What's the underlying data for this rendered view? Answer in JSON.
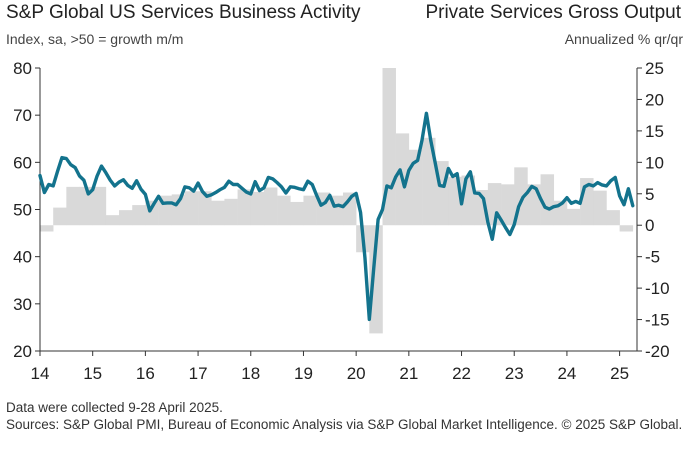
{
  "header": {
    "title_left": "S&P Global US Services Business Activity",
    "title_right": "Private Services Gross Output",
    "subtitle_left": "Index, sa, >50 = growth m/m",
    "subtitle_right": "Annualized % qr/qr"
  },
  "footer": {
    "note": "Data were collected 9-28 April 2025.",
    "sources": "Sources: S&P Global PMI, Bureau of Economic Analysis via S&P Global Market Intelligence. © 2025 S&P Global."
  },
  "chart_data": {
    "type": "bar+line",
    "left_axis": {
      "min": 20,
      "max": 80,
      "ticks": [
        20,
        30,
        40,
        50,
        60,
        70,
        80
      ]
    },
    "right_axis": {
      "min": -20,
      "max": 25,
      "ticks": [
        -20,
        -15,
        -10,
        -5,
        0,
        5,
        10,
        15,
        20,
        25
      ]
    },
    "x_axis": {
      "min": 2014.0,
      "max": 2025.33,
      "tick_labels": [
        "14",
        "15",
        "16",
        "17",
        "18",
        "19",
        "20",
        "21",
        "22",
        "23",
        "24",
        "25"
      ]
    },
    "colors": {
      "line": "#13738d",
      "bars": "#d9d9d9",
      "axis": "#333333"
    },
    "bar_series": {
      "axis": "right",
      "quarters": [
        "2014Q1",
        "2014Q2",
        "2014Q3",
        "2014Q4",
        "2015Q1",
        "2015Q2",
        "2015Q3",
        "2015Q4",
        "2016Q1",
        "2016Q2",
        "2016Q3",
        "2016Q4",
        "2017Q1",
        "2017Q2",
        "2017Q3",
        "2017Q4",
        "2018Q1",
        "2018Q2",
        "2018Q3",
        "2018Q4",
        "2019Q1",
        "2019Q2",
        "2019Q3",
        "2019Q4",
        "2020Q1",
        "2020Q2",
        "2020Q3",
        "2020Q4",
        "2021Q1",
        "2021Q2",
        "2021Q3",
        "2021Q4",
        "2022Q1",
        "2022Q2",
        "2022Q3",
        "2022Q4",
        "2023Q1",
        "2023Q2",
        "2023Q3",
        "2023Q4",
        "2024Q1",
        "2024Q2",
        "2024Q3",
        "2024Q4",
        "2025Q1"
      ],
      "values": [
        -1,
        2.8,
        6.1,
        6.1,
        6.1,
        1.6,
        2.4,
        3.2,
        3.9,
        4.7,
        4.9,
        5.4,
        5.4,
        3.9,
        4.2,
        5.7,
        5.3,
        6.0,
        4.7,
        3.7,
        4.7,
        5.2,
        4.7,
        5.2,
        -4.3,
        -17.2,
        25.0,
        14.6,
        12.0,
        13.9,
        10.2,
        7.7,
        7.9,
        5.6,
        6.7,
        6.5,
        9.2,
        6.5,
        8.1,
        3.9,
        2.6,
        7.5,
        5.5,
        2.4,
        -1.0
      ]
    },
    "line_series": {
      "axis": "left",
      "months": [
        "2014-01",
        "2014-02",
        "2014-03",
        "2014-04",
        "2014-05",
        "2014-06",
        "2014-07",
        "2014-08",
        "2014-09",
        "2014-10",
        "2014-11",
        "2014-12",
        "2015-01",
        "2015-02",
        "2015-03",
        "2015-04",
        "2015-05",
        "2015-06",
        "2015-07",
        "2015-08",
        "2015-09",
        "2015-10",
        "2015-11",
        "2015-12",
        "2016-01",
        "2016-02",
        "2016-03",
        "2016-04",
        "2016-05",
        "2016-06",
        "2016-07",
        "2016-08",
        "2016-09",
        "2016-10",
        "2016-11",
        "2016-12",
        "2017-01",
        "2017-02",
        "2017-03",
        "2017-04",
        "2017-05",
        "2017-06",
        "2017-07",
        "2017-08",
        "2017-09",
        "2017-10",
        "2017-11",
        "2017-12",
        "2018-01",
        "2018-02",
        "2018-03",
        "2018-04",
        "2018-05",
        "2018-06",
        "2018-07",
        "2018-08",
        "2018-09",
        "2018-10",
        "2018-11",
        "2018-12",
        "2019-01",
        "2019-02",
        "2019-03",
        "2019-04",
        "2019-05",
        "2019-06",
        "2019-07",
        "2019-08",
        "2019-09",
        "2019-10",
        "2019-11",
        "2019-12",
        "2020-01",
        "2020-02",
        "2020-03",
        "2020-04",
        "2020-05",
        "2020-06",
        "2020-07",
        "2020-08",
        "2020-09",
        "2020-10",
        "2020-11",
        "2020-12",
        "2021-01",
        "2021-02",
        "2021-03",
        "2021-04",
        "2021-05",
        "2021-06",
        "2021-07",
        "2021-08",
        "2021-09",
        "2021-10",
        "2021-11",
        "2021-12",
        "2022-01",
        "2022-02",
        "2022-03",
        "2022-04",
        "2022-05",
        "2022-06",
        "2022-07",
        "2022-08",
        "2022-09",
        "2022-10",
        "2022-11",
        "2022-12",
        "2023-01",
        "2023-02",
        "2023-03",
        "2023-04",
        "2023-05",
        "2023-06",
        "2023-07",
        "2023-08",
        "2023-09",
        "2023-10",
        "2023-11",
        "2023-12",
        "2024-01",
        "2024-02",
        "2024-03",
        "2024-04",
        "2024-05",
        "2024-06",
        "2024-07",
        "2024-08",
        "2024-09",
        "2024-10",
        "2024-11",
        "2024-12",
        "2025-01",
        "2025-02",
        "2025-03",
        "2025-04"
      ],
      "values": [
        57.2,
        53.6,
        55.3,
        55.0,
        58.1,
        61.0,
        60.8,
        59.5,
        58.9,
        57.1,
        56.2,
        53.3,
        54.2,
        57.1,
        59.2,
        57.8,
        56.2,
        55.0,
        55.8,
        56.3,
        55.1,
        54.5,
        56.1,
        54.3,
        53.2,
        49.7,
        51.3,
        52.8,
        51.3,
        51.4,
        51.4,
        51.0,
        52.3,
        54.8,
        54.6,
        53.9,
        55.6,
        53.8,
        52.8,
        53.1,
        53.6,
        54.2,
        54.7,
        56.0,
        55.3,
        55.3,
        54.5,
        53.7,
        53.3,
        55.9,
        54.0,
        54.6,
        56.8,
        56.5,
        55.7,
        54.8,
        53.5,
        54.8,
        54.7,
        54.4,
        54.2,
        56.0,
        55.3,
        53.0,
        50.9,
        51.5,
        53.0,
        50.7,
        50.9,
        50.6,
        51.6,
        52.8,
        53.4,
        49.4,
        39.8,
        26.7,
        37.5,
        47.9,
        50.0,
        55.0,
        54.6,
        56.9,
        58.4,
        54.8,
        58.3,
        59.8,
        60.4,
        64.7,
        70.4,
        64.6,
        59.9,
        55.1,
        54.9,
        58.7,
        57.0,
        57.6,
        51.2,
        56.5,
        58.0,
        53.5,
        53.4,
        52.3,
        47.3,
        43.7,
        49.3,
        47.8,
        46.2,
        44.7,
        46.8,
        50.6,
        52.6,
        53.6,
        54.9,
        54.4,
        52.3,
        50.5,
        50.1,
        50.6,
        50.8,
        51.4,
        52.5,
        51.3,
        51.7,
        51.3,
        54.8,
        55.3,
        55.0,
        55.7,
        55.2,
        55.0,
        56.1,
        56.8,
        52.9,
        51.0,
        54.4,
        50.8
      ]
    }
  }
}
